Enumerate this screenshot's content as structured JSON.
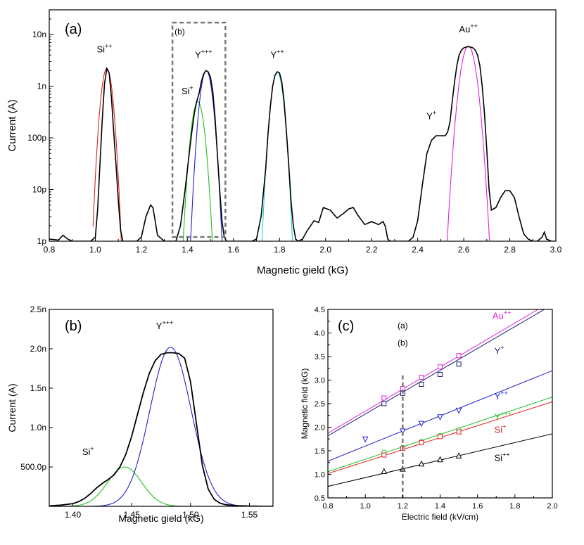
{
  "chart_data": [
    {
      "panel": "(a)",
      "type": "line",
      "xlabel": "Magnetic gield (kG)",
      "ylabel": "Current (A)",
      "xlim": [
        0.8,
        3.0
      ],
      "ylim": [
        1e-12,
        3e-08
      ],
      "yscale": "log",
      "x_ticks": [
        "0.8",
        "1.0",
        "1.2",
        "1.4",
        "1.6",
        "1.8",
        "2.0",
        "2.2",
        "2.4",
        "2.6",
        "2.8",
        "3.0"
      ],
      "y_ticks": [
        {
          "label": "1p",
          "value": 1e-12
        },
        {
          "label": "10p",
          "value": 1e-11
        },
        {
          "label": "100p",
          "value": 1e-10
        },
        {
          "label": "1n",
          "value": 1e-09
        },
        {
          "label": "10n",
          "value": 1e-08
        }
      ],
      "inset_box_label": "(b)",
      "inset_box_range": {
        "x": [
          1.335,
          1.565
        ],
        "y": [
          1e-12,
          1.7e-08
        ]
      },
      "peak_labels": [
        {
          "base": "Si",
          "sup": "++",
          "x": 1.04,
          "y": 4.5e-09
        },
        {
          "base": "Si",
          "sup": "+",
          "x": 1.4,
          "y": 7e-10
        },
        {
          "base": "Y",
          "sup": "+++",
          "x": 1.47,
          "y": 3.5e-09
        },
        {
          "base": "Y",
          "sup": "++",
          "x": 1.79,
          "y": 3.5e-09
        },
        {
          "base": "Y",
          "sup": "+",
          "x": 2.46,
          "y": 2.3e-10
        },
        {
          "base": "Au",
          "sup": "++",
          "x": 2.62,
          "y": 1.1e-08
        }
      ],
      "series": [
        {
          "color": "#000000",
          "x": [
            0.8,
            0.84,
            0.86,
            0.88,
            0.9,
            0.93,
            0.96,
            0.98,
            1.0,
            1.01,
            1.02,
            1.03,
            1.04,
            1.05,
            1.06,
            1.07,
            1.08,
            1.09,
            1.1,
            1.11,
            1.12,
            1.13,
            1.14,
            1.16,
            1.18,
            1.2,
            1.22,
            1.24,
            1.25,
            1.26,
            1.27,
            1.3,
            1.33,
            1.35,
            1.37,
            1.39,
            1.41,
            1.42,
            1.43,
            1.44,
            1.45,
            1.46,
            1.47,
            1.48,
            1.49,
            1.5,
            1.51,
            1.52,
            1.53,
            1.54,
            1.55,
            1.56,
            1.57,
            1.6,
            1.63,
            1.66,
            1.68,
            1.7,
            1.72,
            1.74,
            1.75,
            1.76,
            1.77,
            1.78,
            1.79,
            1.8,
            1.81,
            1.82,
            1.83,
            1.84,
            1.85,
            1.86,
            1.87,
            1.88,
            1.9,
            1.92,
            1.95,
            1.97,
            1.99,
            2.02,
            2.05,
            2.08,
            2.1,
            2.12,
            2.14,
            2.17,
            2.2,
            2.23,
            2.25,
            2.26,
            2.27,
            2.28,
            2.3,
            2.33,
            2.36,
            2.38,
            2.4,
            2.42,
            2.44,
            2.46,
            2.48,
            2.5,
            2.52,
            2.53,
            2.54,
            2.55,
            2.56,
            2.57,
            2.58,
            2.59,
            2.6,
            2.61,
            2.62,
            2.63,
            2.64,
            2.65,
            2.66,
            2.67,
            2.68,
            2.69,
            2.7,
            2.71,
            2.72,
            2.74,
            2.76,
            2.78,
            2.8,
            2.82,
            2.84,
            2.86,
            2.88,
            2.9,
            2.92,
            2.94,
            2.95,
            2.96,
            2.98,
            3.0
          ],
          "y": [
            1.1e-12,
            1.05e-12,
            1.3e-12,
            1.1e-12,
            1e-12,
            1e-12,
            1e-12,
            1e-12,
            1.2e-12,
            4e-12,
            3e-11,
            2.2e-10,
            1.1e-09,
            2.2e-09,
            1.8e-09,
            6e-10,
            1.3e-10,
            3e-11,
            6e-12,
            1.6e-12,
            1e-12,
            1e-12,
            1e-12,
            1e-12,
            1e-12,
            1.2e-12,
            3e-12,
            5e-12,
            4.5e-12,
            2.5e-12,
            1.3e-12,
            1e-12,
            1e-12,
            1e-12,
            2e-12,
            1e-11,
            6e-11,
            1.4e-10,
            3e-10,
            5e-10,
            7e-10,
            1.2e-09,
            1.7e-09,
            2e-09,
            1.9e-09,
            1.5e-09,
            8e-10,
            2.5e-10,
            5e-11,
            1e-11,
            2.5e-12,
            1.2e-12,
            1e-12,
            1e-12,
            1e-12,
            1e-12,
            1e-12,
            1.1e-12,
            3e-12,
            2.5e-11,
            1.2e-10,
            4e-10,
            1e-09,
            1.6e-09,
            1.9e-09,
            1.8e-09,
            1.2e-09,
            5e-10,
            1.3e-10,
            3e-11,
            6e-12,
            2e-12,
            1.1e-12,
            1e-12,
            1.1e-12,
            1.6e-12,
            2.5e-12,
            2.3e-12,
            4.5e-12,
            4e-12,
            2.8e-12,
            3.5e-12,
            4.2e-12,
            4.5e-12,
            3.2e-12,
            2.1e-12,
            2.4e-12,
            2.1e-12,
            2.4e-12,
            1.9e-12,
            1.1e-12,
            1e-12,
            1e-12,
            1e-12,
            1e-12,
            1.2e-12,
            2.5e-12,
            1.2e-11,
            5e-11,
            9e-11,
            1.1e-10,
            1.1e-10,
            1.1e-10,
            1.3e-10,
            2e-10,
            5e-10,
            1.2e-09,
            2.5e-09,
            4e-09,
            5e-09,
            5.5e-09,
            5.7e-09,
            5.8e-09,
            5.7e-09,
            5.5e-09,
            5e-09,
            4e-09,
            2.5e-09,
            1e-09,
            3e-10,
            6e-11,
            1e-11,
            4e-12,
            4.5e-12,
            7e-12,
            9.5e-12,
            9.5e-12,
            7e-12,
            3e-12,
            1.4e-12,
            1.1e-12,
            1e-12,
            1e-12,
            1.2e-12,
            1.5e-12,
            1.1e-12,
            1e-12,
            1e-12
          ]
        },
        {
          "color": "#e02020",
          "gauss": {
            "A": 2.2e-09,
            "mu": 1.05,
            "sigma": 0.016,
            "lo": 0.99,
            "hi": 1.12
          }
        },
        {
          "color": "#20c020",
          "gauss": {
            "A": 5e-10,
            "mu": 1.445,
            "sigma": 0.018,
            "lo": 1.36,
            "hi": 1.52
          }
        },
        {
          "color": "#2020d0",
          "gauss": {
            "A": 2e-09,
            "mu": 1.482,
            "sigma": 0.0175,
            "lo": 1.38,
            "hi": 1.58
          }
        },
        {
          "color": "#20d0d0",
          "gauss": {
            "A": 1.9e-09,
            "mu": 1.79,
            "sigma": 0.017,
            "lo": 1.7,
            "hi": 1.88
          }
        },
        {
          "color": "#e020e0",
          "gauss": {
            "A": 6e-09,
            "mu": 2.62,
            "sigma": 0.022,
            "lo": 2.48,
            "hi": 2.76
          }
        }
      ]
    },
    {
      "panel": "(b)",
      "type": "line",
      "xlabel": "Magnetic gield (kG)",
      "ylabel": "Current (A)",
      "xlim": [
        1.38,
        1.57
      ],
      "ylim": [
        0,
        2.5e-09
      ],
      "x_ticks": [
        "1.40",
        "1.45",
        "1.50",
        "1.55"
      ],
      "y_ticks": [
        {
          "label": "500.0p",
          "value": 5e-10
        },
        {
          "label": "1.0n",
          "value": 1e-09
        },
        {
          "label": "1.5n",
          "value": 1.5e-09
        },
        {
          "label": "2.0n",
          "value": 2e-09
        },
        {
          "label": "2.5n",
          "value": 2.5e-09
        }
      ],
      "peak_labels": [
        {
          "base": "Si",
          "sup": "+",
          "x": 1.413,
          "y": 6.5e-10
        },
        {
          "base": "Y",
          "sup": "+++",
          "x": 1.478,
          "y": 2.25e-09
        }
      ],
      "series": [
        {
          "color": "#000000",
          "x": [
            1.38,
            1.39,
            1.4,
            1.405,
            1.41,
            1.415,
            1.42,
            1.425,
            1.43,
            1.435,
            1.44,
            1.445,
            1.45,
            1.455,
            1.46,
            1.465,
            1.47,
            1.475,
            1.48,
            1.485,
            1.49,
            1.495,
            1.5,
            1.505,
            1.51,
            1.515,
            1.52,
            1.525,
            1.53,
            1.54,
            1.55,
            1.56,
            1.57
          ],
          "y": [
            5e-12,
            1.5e-11,
            3.5e-11,
            6e-11,
            1e-10,
            1.6e-10,
            2.3e-10,
            2.9e-10,
            3.4e-10,
            4e-10,
            5e-10,
            6.6e-10,
            8.9e-10,
            1.17e-09,
            1.45e-09,
            1.69e-09,
            1.85e-09,
            1.93e-09,
            1.95e-09,
            1.95e-09,
            1.94e-09,
            1.88e-09,
            1.58e-09,
            1.05e-09,
            5.2e-10,
            2.2e-10,
            9e-11,
            4e-11,
            2e-11,
            8e-12,
            3e-12,
            1e-12,
            0
          ]
        },
        {
          "color": "#20c020",
          "gauss": {
            "A": 5e-10,
            "mu": 1.444,
            "sigma": 0.0145,
            "lo": 1.38,
            "hi": 1.57
          }
        },
        {
          "color": "#2020d0",
          "gauss": {
            "A": 2.02e-09,
            "mu": 1.483,
            "sigma": 0.0175,
            "lo": 1.38,
            "hi": 1.57
          }
        }
      ]
    },
    {
      "panel": "(c)",
      "type": "scatter",
      "xlabel": "Electric field (kV/cm)",
      "ylabel": "Magnetic field (kG)",
      "xlim": [
        0.8,
        2.0
      ],
      "ylim": [
        0.5,
        4.5
      ],
      "x_ticks": [
        "0.8",
        "1.0",
        "1.2",
        "1.4",
        "1.6",
        "1.8",
        "2.0"
      ],
      "y_ticks": [
        "0.5",
        "1.0",
        "1.5",
        "2.0",
        "2.5",
        "3.0",
        "3.5",
        "4.0",
        "4.5"
      ],
      "vline": {
        "x": 1.2,
        "labels": [
          "(a)",
          "(b)"
        ]
      },
      "series": [
        {
          "base": "Au",
          "sup": "++",
          "color": "#e020e0",
          "marker": "square",
          "label_at": [
            1.68,
            4.3
          ],
          "x": [
            1.1,
            1.2,
            1.3,
            1.4,
            1.5
          ],
          "y": [
            2.62,
            2.82,
            3.06,
            3.28,
            3.52
          ],
          "fit": [
            0.0,
            2.34
          ]
        },
        {
          "base": "Y",
          "sup": "+",
          "color": "#1a1a70",
          "marker": "square",
          "label_at": [
            1.69,
            3.55
          ],
          "x": [
            1.1,
            1.2,
            1.3,
            1.4,
            1.5
          ],
          "y": [
            2.5,
            2.72,
            2.91,
            3.12,
            3.34
          ],
          "fit": [
            -0.04,
            2.32
          ]
        },
        {
          "base": "Y",
          "sup": "++",
          "color": "#2020d0",
          "marker": "tri_down",
          "label_at": [
            1.69,
            2.59
          ],
          "x": [
            1.0,
            1.2,
            1.3,
            1.4,
            1.5
          ],
          "y": [
            1.75,
            1.92,
            2.08,
            2.22,
            2.36
          ],
          "fit": [
            0.0,
            1.6
          ]
        },
        {
          "base": "Y",
          "sup": "+++",
          "color": "#20c020",
          "marker": "circle",
          "label_at": [
            1.69,
            2.15
          ],
          "x": [
            1.1,
            1.2,
            1.3,
            1.4,
            1.5
          ],
          "y": [
            1.47,
            1.57,
            1.7,
            1.82,
            1.94
          ],
          "fit": [
            0.0,
            1.32
          ]
        },
        {
          "base": "Si",
          "sup": "+",
          "color": "#e02020",
          "marker": "square",
          "label_at": [
            1.69,
            1.88
          ],
          "x": [
            1.1,
            1.2,
            1.3,
            1.4,
            1.5
          ],
          "y": [
            1.41,
            1.55,
            1.67,
            1.8,
            1.9
          ],
          "fit": [
            0.0,
            1.27
          ]
        },
        {
          "base": "Si",
          "sup": "++",
          "color": "#000000",
          "marker": "triangle",
          "label_at": [
            1.69,
            1.28
          ],
          "x": [
            1.1,
            1.2,
            1.3,
            1.4,
            1.5
          ],
          "y": [
            1.06,
            1.11,
            1.22,
            1.31,
            1.39
          ],
          "fit": [
            0.0,
            0.93
          ]
        }
      ]
    }
  ]
}
